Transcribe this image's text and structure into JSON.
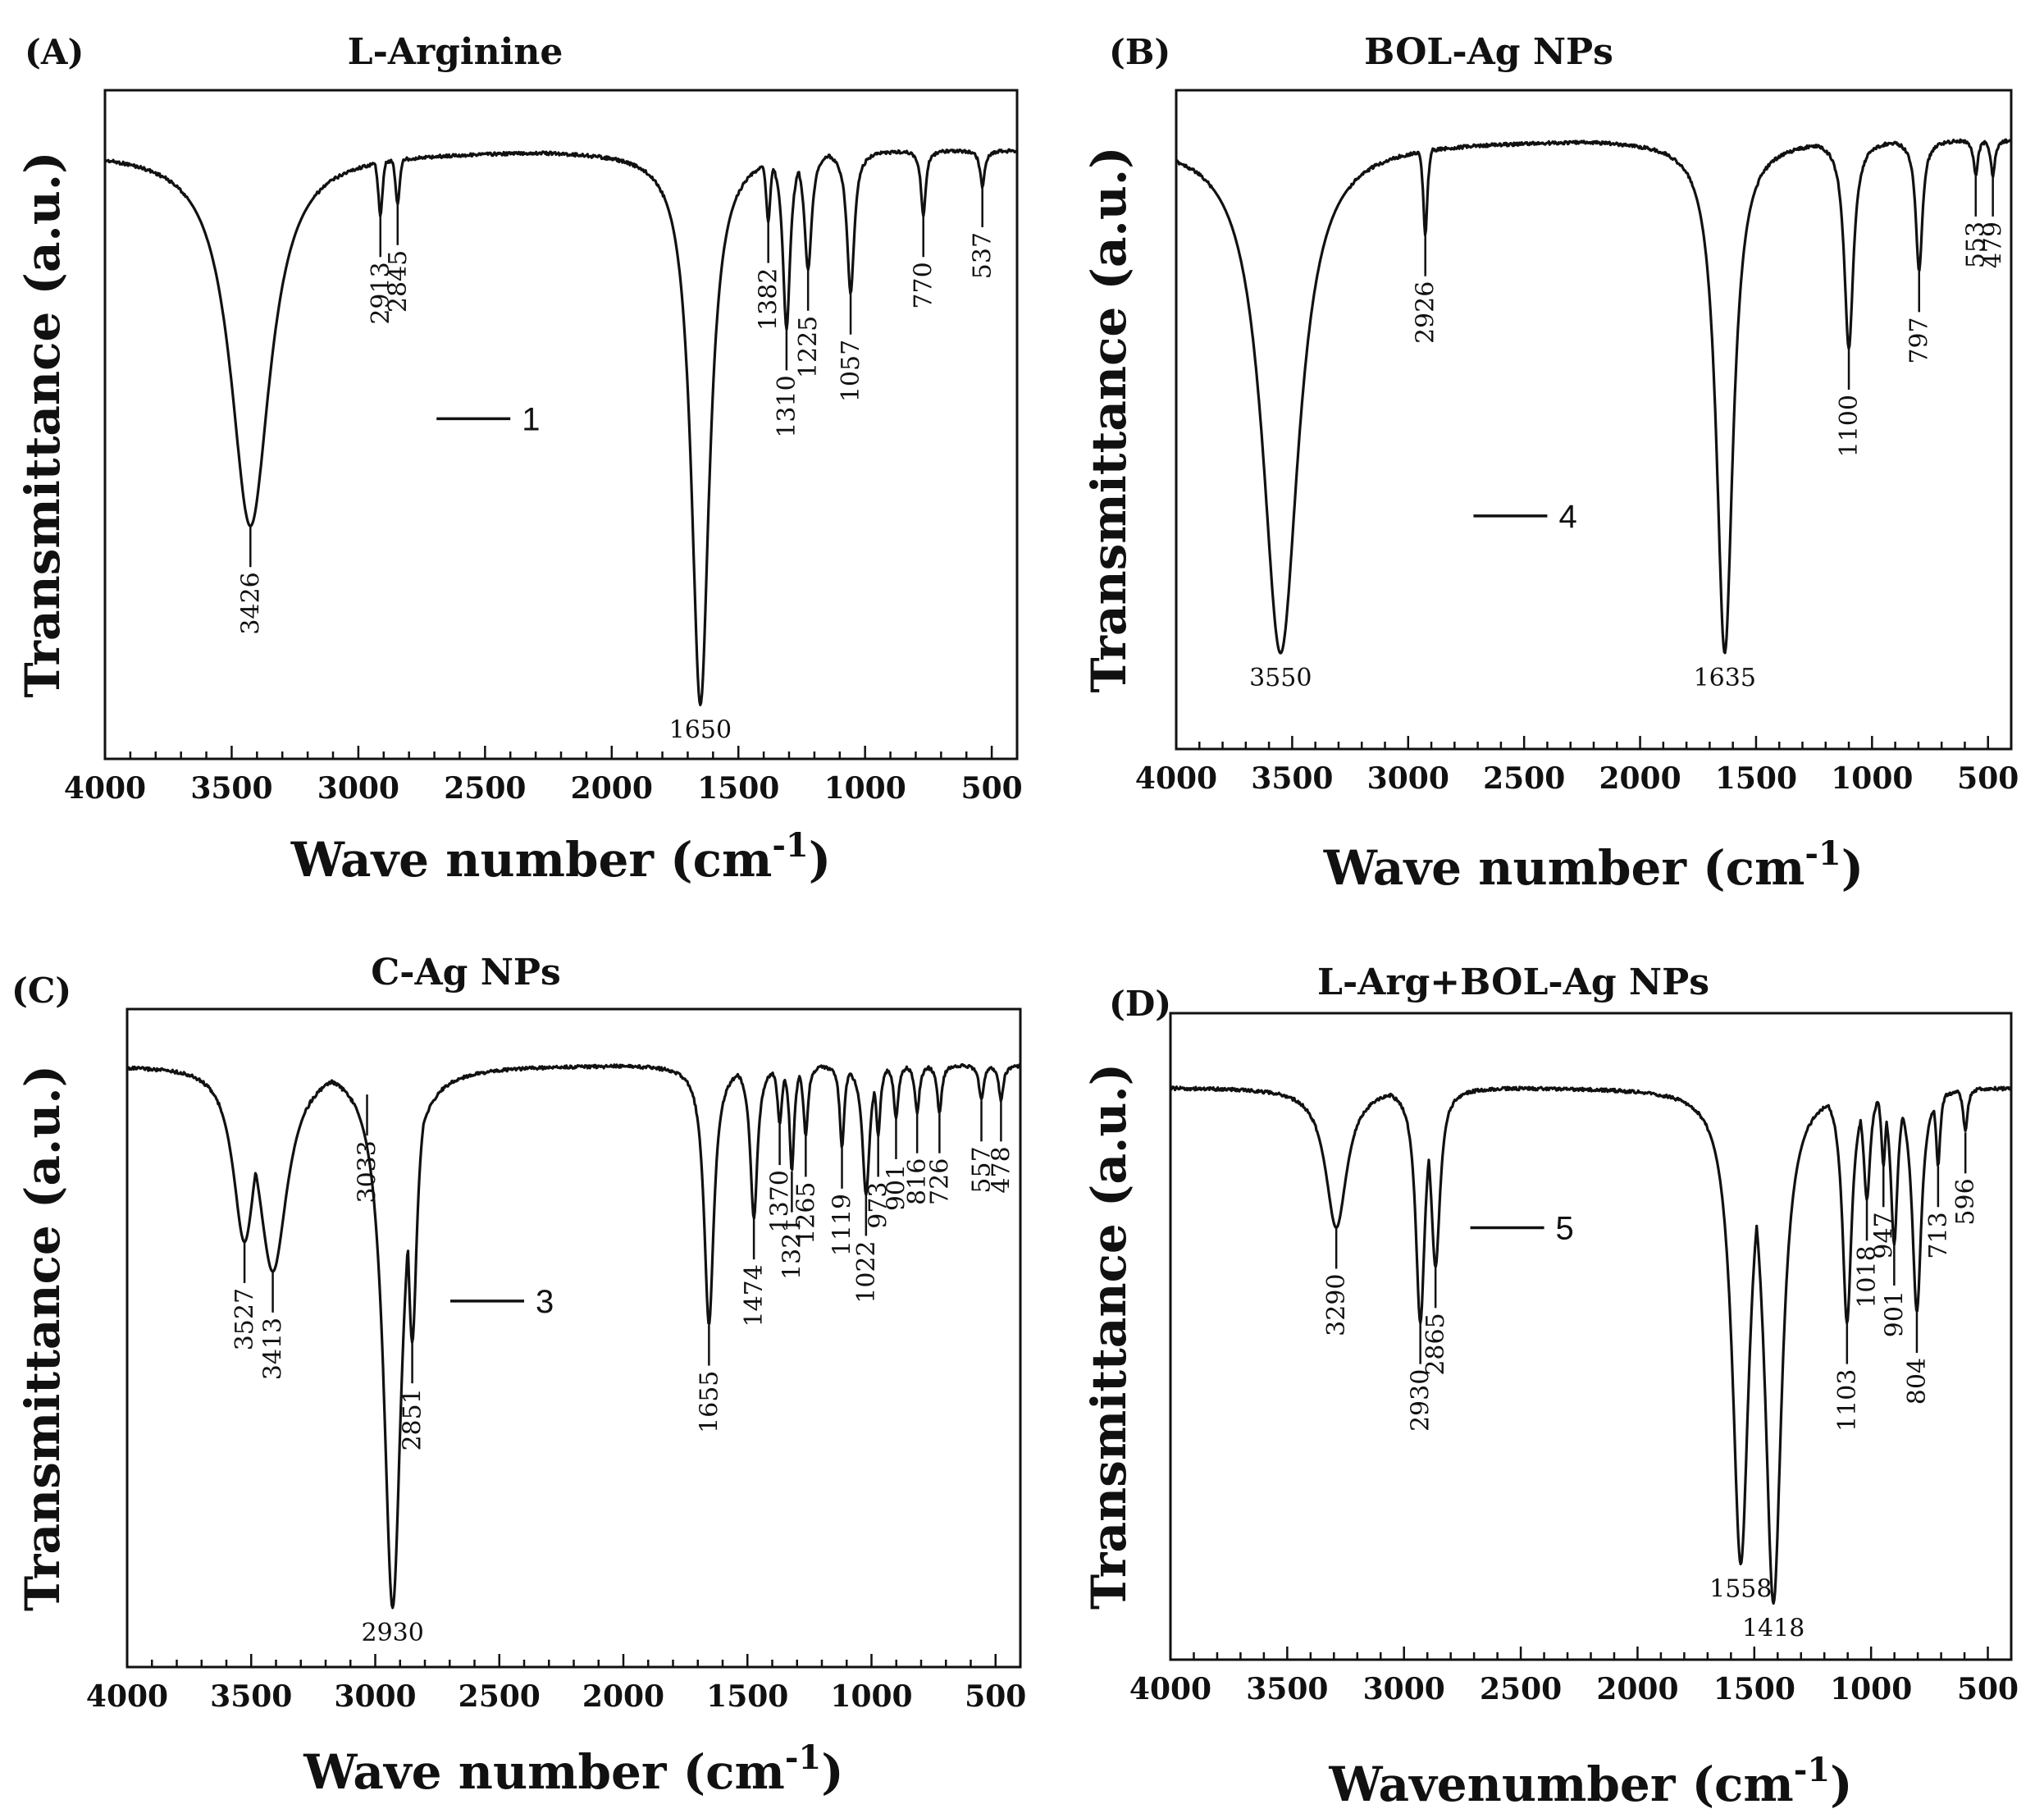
{
  "colors": {
    "line": "#111111",
    "background": "#ffffff"
  },
  "chart_data": [
    {
      "id": "A",
      "letter": "(A)",
      "title": "L-Arginine",
      "type": "line",
      "xlabel": "Wave number (cm",
      "xlabel_sup": "-1",
      "xlabel_close": ")",
      "ylabel": "Transmittance (a.u.)",
      "xlim": [
        4000,
        400
      ],
      "ylim": [
        0,
        100
      ],
      "xticks": [
        4000,
        3500,
        3000,
        2500,
        2000,
        1500,
        1000,
        500
      ],
      "legend": "1",
      "legend_pos": [
        2400,
        45
      ],
      "peaks": [
        {
          "x": 3426,
          "depth": 63,
          "label": "3426"
        },
        {
          "x": 2913,
          "depth": 11,
          "label": "2913"
        },
        {
          "x": 2845,
          "depth": 9,
          "label": "2845"
        },
        {
          "x": 1650,
          "depth": 93,
          "label": "1650"
        },
        {
          "x": 1382,
          "depth": 12,
          "label": "1382"
        },
        {
          "x": 1310,
          "depth": 30,
          "label": "1310"
        },
        {
          "x": 1225,
          "depth": 20,
          "label": "1225"
        },
        {
          "x": 1057,
          "depth": 24,
          "label": "1057"
        },
        {
          "x": 770,
          "depth": 11,
          "label": "770"
        },
        {
          "x": 537,
          "depth": 6,
          "label": "537"
        }
      ]
    },
    {
      "id": "B",
      "letter": "(B)",
      "title": "BOL-Ag NPs",
      "type": "line",
      "xlabel": "Wave number (cm",
      "xlabel_sup": "-1",
      "xlabel_close": ")",
      "ylabel": "Transmittance (a.u.)",
      "xlim": [
        4000,
        400
      ],
      "ylim": [
        0,
        100
      ],
      "xticks": [
        4000,
        3500,
        3000,
        2500,
        2000,
        1500,
        1000,
        500
      ],
      "legend": "4",
      "legend_pos": [
        2400,
        63
      ],
      "peaks": [
        {
          "x": 3550,
          "depth": 86,
          "label": "3550"
        },
        {
          "x": 2926,
          "depth": 16,
          "label": "2926"
        },
        {
          "x": 1635,
          "depth": 86,
          "label": "1635"
        },
        {
          "x": 1100,
          "depth": 35,
          "label": "1100"
        },
        {
          "x": 797,
          "depth": 22,
          "label": "797"
        },
        {
          "x": 553,
          "depth": 6,
          "label": "553"
        },
        {
          "x": 479,
          "depth": 6,
          "label": "479"
        }
      ]
    },
    {
      "id": "C",
      "letter": "(C)",
      "title": "C-Ag NPs",
      "type": "line",
      "xlabel": "Wave number (cm",
      "xlabel_sup": "-1",
      "xlabel_close": ")",
      "ylabel": "Transmittance (a.u.)",
      "xlim": [
        4000,
        400
      ],
      "ylim": [
        0,
        100
      ],
      "xticks": [
        4000,
        3500,
        3000,
        2500,
        2000,
        1500,
        1000,
        500
      ],
      "legend": "3",
      "legend_pos": [
        2400,
        40
      ],
      "peaks": [
        {
          "x": 3527,
          "depth": 30,
          "label": "3527"
        },
        {
          "x": 3413,
          "depth": 35,
          "label": "3413"
        },
        {
          "x": 3033,
          "depth": 5,
          "label": "3033"
        },
        {
          "x": 2930,
          "depth": 92,
          "label": "2930"
        },
        {
          "x": 2851,
          "depth": 47,
          "label": "2851"
        },
        {
          "x": 1655,
          "depth": 44,
          "label": "1655"
        },
        {
          "x": 1474,
          "depth": 26,
          "label": "1474"
        },
        {
          "x": 1370,
          "depth": 10,
          "label": "1370"
        },
        {
          "x": 1321,
          "depth": 18,
          "label": "1321"
        },
        {
          "x": 1265,
          "depth": 12,
          "label": "1265"
        },
        {
          "x": 1119,
          "depth": 14,
          "label": "1119"
        },
        {
          "x": 1022,
          "depth": 22,
          "label": "1022"
        },
        {
          "x": 973,
          "depth": 12,
          "label": "973"
        },
        {
          "x": 901,
          "depth": 9,
          "label": "901"
        },
        {
          "x": 816,
          "depth": 8,
          "label": "816"
        },
        {
          "x": 726,
          "depth": 8,
          "label": "726"
        },
        {
          "x": 557,
          "depth": 6,
          "label": "557"
        },
        {
          "x": 478,
          "depth": 6,
          "label": "478"
        }
      ]
    },
    {
      "id": "D",
      "letter": "(D)",
      "title": "L-Arg+BOL-Ag NPs",
      "type": "line",
      "xlabel": "Wavenumber (cm",
      "xlabel_sup": "-1",
      "xlabel_close": ")",
      "ylabel": "Transmittance (a.u.)",
      "xlim": [
        4000,
        400
      ],
      "ylim": [
        0,
        100
      ],
      "xticks": [
        4000,
        3500,
        3000,
        2500,
        2000,
        1500,
        1000,
        500
      ],
      "legend": "5",
      "legend_pos": [
        2400,
        25
      ],
      "peaks": [
        {
          "x": 3290,
          "depth": 25,
          "label": "3290"
        },
        {
          "x": 2930,
          "depth": 42,
          "label": "2930"
        },
        {
          "x": 2865,
          "depth": 32,
          "label": "2865"
        },
        {
          "x": 1558,
          "depth": 85,
          "label": "1558"
        },
        {
          "x": 1418,
          "depth": 92,
          "label": "1418"
        },
        {
          "x": 1103,
          "depth": 42,
          "label": "1103"
        },
        {
          "x": 1018,
          "depth": 20,
          "label": "1018"
        },
        {
          "x": 947,
          "depth": 14,
          "label": "947"
        },
        {
          "x": 901,
          "depth": 28,
          "label": "901"
        },
        {
          "x": 804,
          "depth": 40,
          "label": "804"
        },
        {
          "x": 713,
          "depth": 14,
          "label": "713"
        },
        {
          "x": 596,
          "depth": 8,
          "label": "596"
        }
      ]
    }
  ]
}
